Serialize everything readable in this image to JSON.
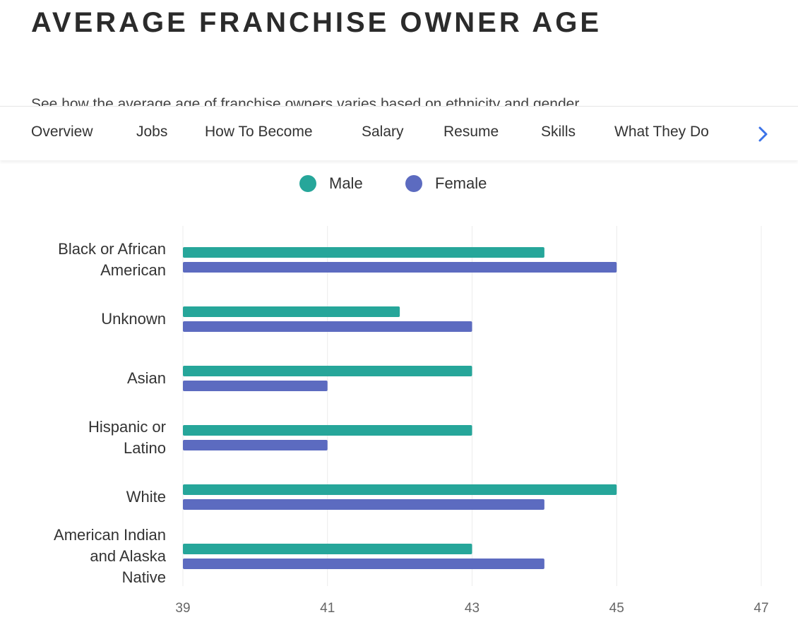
{
  "header": {
    "title": "AVERAGE FRANCHISE OWNER AGE",
    "subtitle": "See how the average age of franchise owners varies based on ethnicity and gender."
  },
  "nav": {
    "items": [
      "Overview",
      "Jobs",
      "How To Become",
      "Salary",
      "Resume",
      "Skills",
      "What They Do"
    ]
  },
  "chart_data": {
    "type": "hbar",
    "categories": [
      "Black or African American",
      "Unknown",
      "Asian",
      "Hispanic or Latino",
      "White",
      "American Indian and Alaska Native"
    ],
    "series": [
      {
        "name": "Male",
        "color": "#26a69a",
        "values": [
          44,
          42,
          43,
          43,
          45,
          43
        ]
      },
      {
        "name": "Female",
        "color": "#5c6bc0",
        "values": [
          45,
          43,
          41,
          41,
          44,
          44
        ]
      }
    ],
    "xlim": [
      39,
      47
    ],
    "xticks": [
      39,
      41,
      43,
      45,
      47
    ],
    "grid": true,
    "legend": "top"
  }
}
